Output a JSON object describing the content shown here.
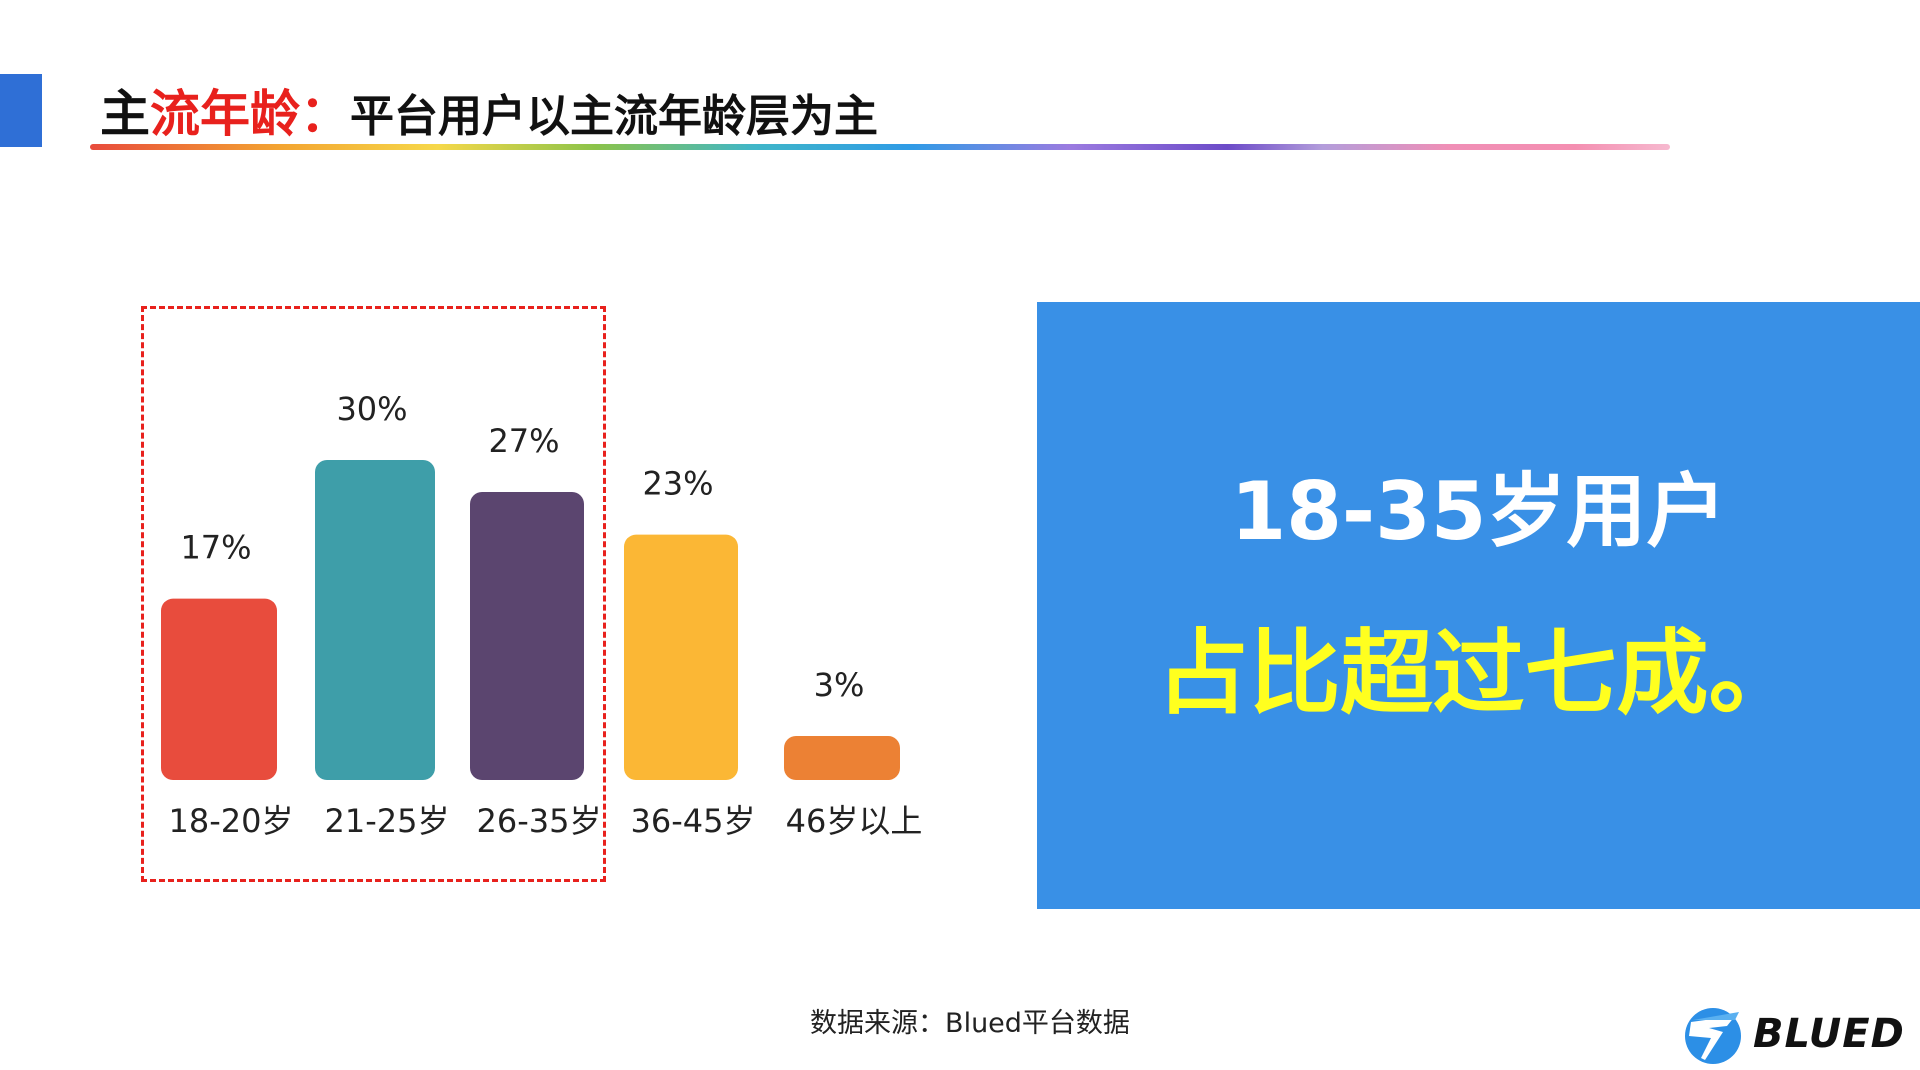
{
  "header": {
    "title_part1": "主",
    "title_part2": "流年龄：",
    "title_part3": "平台用户以主流年龄层为主"
  },
  "chart_data": {
    "type": "bar",
    "categories": [
      "18-20岁",
      "21-25岁",
      "26-35岁",
      "36-45岁",
      "46岁以上"
    ],
    "values": [
      17,
      30,
      27,
      23,
      3
    ],
    "value_labels": [
      "17%",
      "30%",
      "27%",
      "23%",
      "3%"
    ],
    "colors": [
      "#e84c3d",
      "#3e9ea9",
      "#5b456f",
      "#fbb735",
      "#ec8134"
    ],
    "ylim": [
      0,
      30
    ],
    "grid": false,
    "legend": false
  },
  "callout": {
    "line1": "18-35岁用户",
    "line2": "占比超过七成。"
  },
  "footer": {
    "source": "数据来源：Blued平台数据"
  },
  "logo": {
    "text": "BLUED"
  }
}
